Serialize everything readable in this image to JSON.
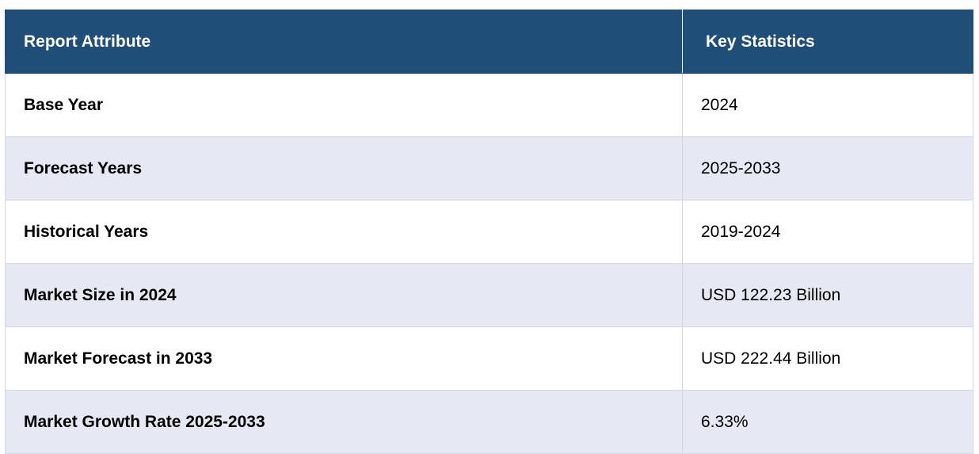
{
  "table": {
    "headers": {
      "attribute": "Report Attribute",
      "statistics": "Key Statistics"
    },
    "rows": [
      {
        "attribute": "Base Year",
        "value": "2024"
      },
      {
        "attribute": "Forecast Years",
        "value": "2025-2033"
      },
      {
        "attribute": "Historical Years",
        "value": "2019-2024"
      },
      {
        "attribute": "Market Size in 2024",
        "value": "USD 122.23 Billion"
      },
      {
        "attribute": "Market Forecast in 2033",
        "value": "USD 222.44 Billion"
      },
      {
        "attribute": "Market Growth Rate 2025-2033",
        "value": "6.33%"
      }
    ]
  },
  "colors": {
    "header_bg": "#1f4e79",
    "header_text": "#ffffff",
    "stripe_bg": "#e6e8f4",
    "row_bg": "#ffffff",
    "border": "#d6d6de"
  }
}
